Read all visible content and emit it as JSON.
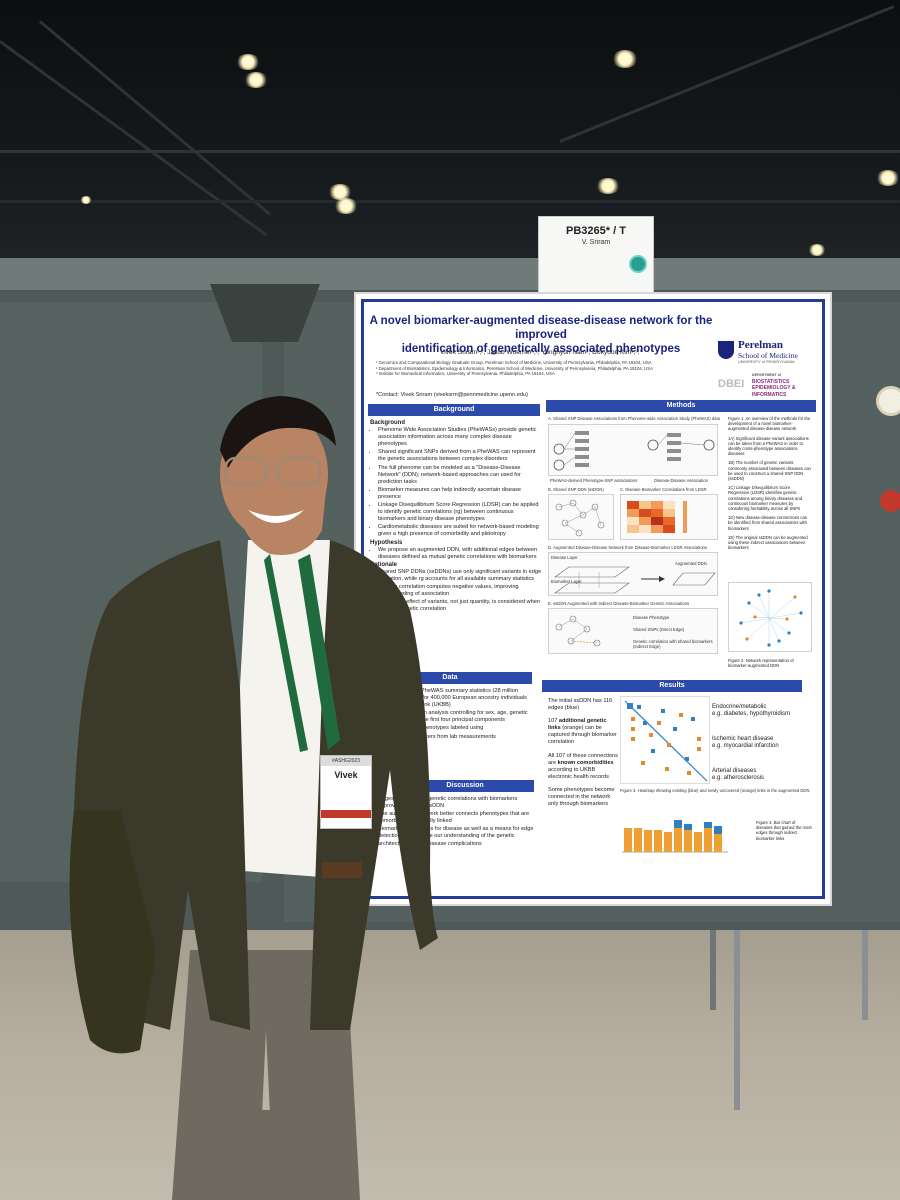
{
  "sign": {
    "code": "PB3265* / T",
    "name": "V. Sriram"
  },
  "poster": {
    "title_line1": "A novel biomarker-augmented disease-disease network for the improved",
    "title_line2": "identification of genetically associated phenotypes",
    "authors": "Vivek Sriram¹,², Jakob Woerner¹,², Yonghyun Nam², Dokyoon Kim²,³,*",
    "affiliations": [
      "¹ Genomics and Computational Biology Graduate Group, Perelman School of Medicine, University of Pennsylvania, Philadelphia, PA 19104, USA",
      "² Department of Biostatistics, Epidemiology & Informatics, Perelman School of Medicine, University of Pennsylvania, Philadelphia, PA 19104, USA",
      "³ Institute for Biomedical Informatics, University of Pennsylvania, Philadelphia, PA 19104, USA"
    ],
    "contact": "*Contact: Vivek Sriram (viveksrm@pennmedicine.upenn.edu)",
    "logo_penn": {
      "name": "Perelman",
      "school": "School of Medicine",
      "univ": "UNIVERSITY of PENNSYLVANIA"
    },
    "logo_dbei": {
      "abbr": "DBEI",
      "dept": "DEPARTMENT of",
      "line1": "BIOSTATISTICS",
      "line2": "EPIDEMIOLOGY &",
      "line3": "INFORMATICS"
    },
    "sections": {
      "background": "Background",
      "methods": "Methods",
      "data": "Data",
      "results": "Results",
      "discussion": "Discussion"
    },
    "background": {
      "heading": "Background",
      "bullets": [
        "Phenome Wide Association Studies (PheWASs) provide genetic association information across many complex disease phenotypes",
        "Shared significant SNPs derived from a PheWAS can represent the genetic associations between complex disorders",
        "The full phenome can be modeled as a \"Disease-Disease Network\" (DDN); network-based approaches can used for prediction tasks",
        "Biomarker measures can help indirectly ascertain disease presence",
        "Linkage Disequilibrium Score Regression (LDSR) can be applied to identify genetic correlations (rg) between continuous biomarkers and binary disease phenotypes",
        "Cardiometabolic diseases are suited for network-based modeling given a high presence of comorbidity and pleiotropy"
      ],
      "hypothesis_heading": "Hypothesis",
      "hypothesis": "We propose an augmented DDN, with additional edges between diseases defined as mutual genetic correlations with biomarkers",
      "rationale_heading": "Rationale",
      "rationale": [
        "Shared SNP DDNs (ssDDNs) use only significant variants in edge formation, while rg accounts for all available summary statistics",
        "Genetic correlation computes negative values, improving understanding of association",
        "Differential effect of variants, not just quantity, is considered when applying genetic correlation"
      ]
    },
    "data": {
      "bullets": [
        "SAIGE-analyzed PheWAS summary statistics (28 million imputed variants) for 400,000 European ancestry individuals from the UK BioBank (UKBB)",
        "Genetic association analysis controlling for sex, age, genetic relatedness, and the first four principal components",
        "Cardiometabolic phenotypes labeled using",
        "Continuous biomarkers from lab measurements"
      ]
    },
    "discussion": {
      "bullets": [
        "Edges representing genetic correlations with biomarkers improved our initial ssDDN",
        "The augmented network better connects phenotypes that are comorbid or genetically linked",
        "Biomarkers as proxies for disease as well as a means for edge detection can improve our understanding of the genetic architecture behind disease complications"
      ]
    },
    "methods": {
      "panel_a": "A. Shared SNP Disease Associations from Phenome-wide Association Study (PheWAS) data",
      "panel_a_left": "PheWAS-derived Phenotype-SNP associations",
      "panel_a_right": "Disease-Disease Association",
      "panel_b": "B. Shared SNP DDN (ssDDN)",
      "panel_c": "C. Disease-Biomarker Correlations from LDSR",
      "panel_d": "D. Augmented Disease-Disease Network from Disease-Biomarker LDSR Associations",
      "panel_d_layer1": "Disease Layer",
      "panel_d_layer2": "Biomarker Layer",
      "panel_d_out": "Augmented DDN",
      "panel_e": "E. ssDDN Augmented with Indirect Disease-Biomarker Genetic Associations",
      "legend_e": [
        "Disease Phenotype",
        "Shared SNPs (Direct Edge)",
        "Genetic correlation with shared biomarkers (Indirect Edge)"
      ],
      "fig1_caption": [
        "Figure 1. An overview of the methods for the development of a novel biomarker-augmented disease-disease network",
        "1A) Significant disease-variant associations can be taken from a PheWAS in order to identify cross-phenotype associations diseases",
        "1B) The number of genetic variants commonly associated between diseases can be used to construct a shared-SNP DDN (ssDDN)",
        "1C) Linkage Disequilibrium Score Regression (LDSR) identifies genetic correlations among binary diseases and continuous biomarker measures by considering heritability across all SNPs",
        "1D) New disease-disease connections can be identified from shared associations with biomarkers",
        "1E) The original ssDDN can be augmented using these indirect associations between biomarkers"
      ],
      "fig2_caption": "Figure 2. Network representation of biomarker-augmented DDN"
    },
    "results": {
      "bullet1": "The initial ssDDN has 116 edges (blue)",
      "bullet2_pre": "107 ",
      "bullet2_bold": "additional genetic links",
      "bullet2_post": " (orange) can be captured through biomarker correlation",
      "bullet3_pre": "All 107 of these connections are ",
      "bullet3_bold": "known comorbidities",
      "bullet3_post": " according to UKBB electronic health records",
      "bullet4": "Some phenotypes become connected in the network only through biomarkers",
      "category1": "Endocrine/metabolic",
      "category1_ex": "e.g. diabetes, hypothyroidism",
      "category2": "Ischemic heart disease",
      "category2_ex": "e.g. myocardial infarction",
      "category3": "Arterial diseases",
      "category3_ex": "e.g. atherosclerosis",
      "fig3_caption": "Figure 3. Heatmap showing existing (blue) and newly uncovered (orange) links in the augmented DDN",
      "fig4_caption": "Figure 4. Bar chart of diseases that gained the most edges through indirect biomarker links"
    }
  },
  "badge": {
    "top": "#ASHG2023",
    "name": "Vivek"
  },
  "colors": {
    "poster_blue": "#253b9a",
    "jacket": "#3b3a2a",
    "pants": "#6e6a60",
    "shirt": "#f4f3ee",
    "lanyard": "#1f6b3e"
  }
}
